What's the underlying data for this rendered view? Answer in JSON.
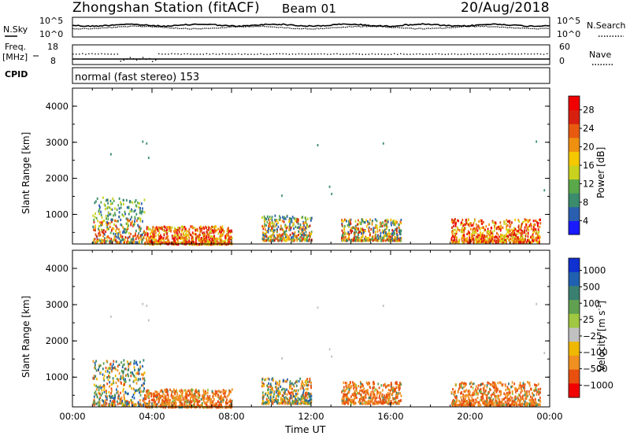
{
  "header": {
    "station": "Zhongshan Station (fitACF)",
    "beam": "Beam 01",
    "date": "20/Aug/2018"
  },
  "top_panels": {
    "nsky_label": "N.Sky",
    "nsky_ticks": [
      "10^5",
      "10^0"
    ],
    "nsearch_label": "N.Search",
    "nsearch_ticks": [
      "10^5",
      "10^0"
    ],
    "freq_label": "Freq.",
    "freq_unit": "[MHz]",
    "freq_ticks": [
      "18",
      "8"
    ],
    "nave_label": "Nave",
    "nave_ticks": [
      "60",
      "0"
    ],
    "cpid_label": "CPID",
    "cpid_value": "normal (fast stereo) 153"
  },
  "colors": {
    "power_scale": [
      "#1a1aff",
      "#2a5fb0",
      "#3a8c6c",
      "#5aa84a",
      "#c8d21e",
      "#f5c800",
      "#f09010",
      "#e85a10",
      "#d82010",
      "#f00000"
    ],
    "velocity_scale": [
      "#1030d0",
      "#2060b0",
      "#3a8070",
      "#60a050",
      "#a0c840",
      "#c0c0c0",
      "#f0b800",
      "#f09020",
      "#e85010",
      "#f00000"
    ]
  },
  "chart_data": [
    {
      "type": "heatmap",
      "name": "Power panel",
      "ylabel": "Slant Range [km]",
      "ylim": [
        180,
        4500
      ],
      "yticks": [
        "1000",
        "2000",
        "3000",
        "4000"
      ],
      "xlim_hours": [
        0,
        24
      ],
      "xticks": [
        "00:00",
        "04:00",
        "08:00",
        "12:00",
        "16:00",
        "20:00",
        "00:00"
      ],
      "colorbar": {
        "label": "Power [dB]",
        "ticks": [
          "28",
          "24",
          "20",
          "16",
          "12",
          "8",
          "4"
        ],
        "range": [
          0,
          30
        ]
      },
      "echo_regions": [
        {
          "t0": 1.0,
          "t1": 3.6,
          "r0": 250,
          "r1": 1500,
          "level": "mixed-high"
        },
        {
          "t0": 3.6,
          "t1": 8.0,
          "r0": 200,
          "r1": 700,
          "level": "high"
        },
        {
          "t0": 9.5,
          "t1": 12.0,
          "r0": 300,
          "r1": 1000,
          "level": "mixed"
        },
        {
          "t0": 13.5,
          "t1": 16.5,
          "r0": 300,
          "r1": 900,
          "level": "mixed"
        },
        {
          "t0": 19.0,
          "t1": 23.5,
          "r0": 250,
          "r1": 900,
          "level": "high"
        }
      ]
    },
    {
      "type": "heatmap",
      "name": "Velocity panel",
      "ylabel": "Slant Range [km]",
      "ylim": [
        180,
        4500
      ],
      "yticks": [
        "1000",
        "2000",
        "3000",
        "4000"
      ],
      "xlim_hours": [
        0,
        24
      ],
      "xticks": [
        "00:00",
        "04:00",
        "08:00",
        "12:00",
        "16:00",
        "20:00",
        "00:00"
      ],
      "xlabel": "Time UT",
      "colorbar": {
        "label": "Velocity [m s",
        "label_sup": "-1",
        "label_close": "]",
        "ticks": [
          "1000",
          "500",
          "100",
          "25",
          "−25",
          "−100",
          "−500",
          "−1000"
        ]
      },
      "echo_regions": [
        {
          "t0": 1.0,
          "t1": 3.6,
          "r0": 250,
          "r1": 1500,
          "level": "mixed"
        },
        {
          "t0": 3.6,
          "t1": 8.0,
          "r0": 200,
          "r1": 700,
          "level": "negative"
        },
        {
          "t0": 9.5,
          "t1": 12.0,
          "r0": 300,
          "r1": 1000,
          "level": "mixed"
        },
        {
          "t0": 13.5,
          "t1": 16.5,
          "r0": 300,
          "r1": 900,
          "level": "negative"
        },
        {
          "t0": 19.0,
          "t1": 23.5,
          "r0": 250,
          "r1": 900,
          "level": "negative"
        }
      ]
    }
  ]
}
